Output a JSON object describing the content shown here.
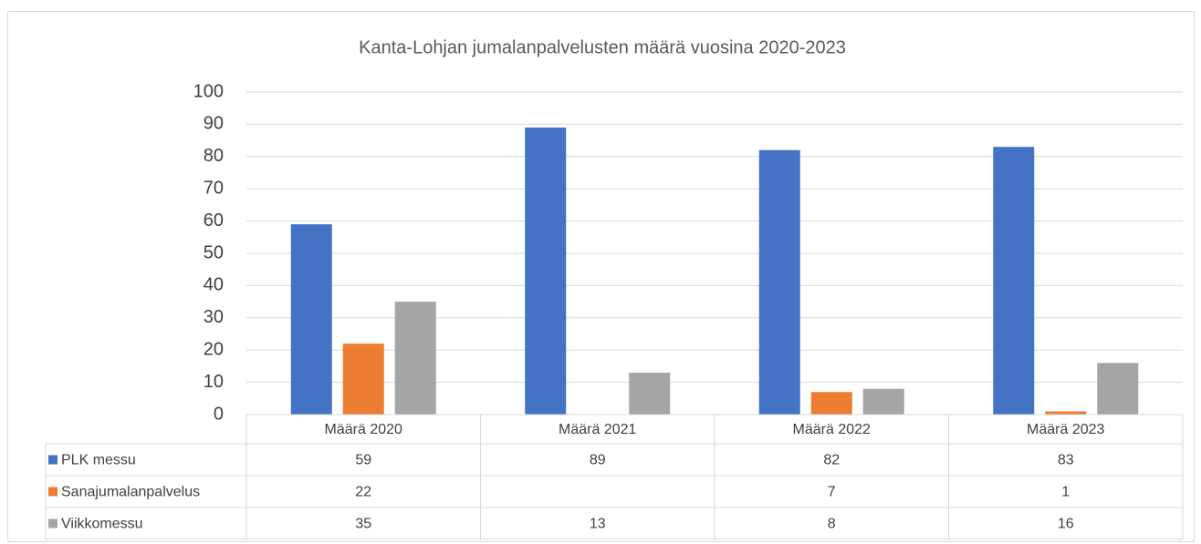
{
  "chart_data": {
    "type": "bar",
    "title": "Kanta-Lohjan jumalanpalvelusten määrä vuosina 2020-2023",
    "categories": [
      "Määrä 2020",
      "Määrä 2021",
      "Määrä 2022",
      "Määrä 2023"
    ],
    "series": [
      {
        "name": "PLK messu",
        "color": "#4472c4",
        "values": [
          59,
          89,
          82,
          83
        ]
      },
      {
        "name": "Sanajumalanpalvelus",
        "color": "#ed7d31",
        "values": [
          22,
          null,
          7,
          1
        ]
      },
      {
        "name": "Viikkomessu",
        "color": "#a5a5a5",
        "values": [
          35,
          13,
          8,
          16
        ]
      }
    ],
    "ylim": [
      0,
      100
    ],
    "yticks": [
      0,
      10,
      20,
      30,
      40,
      50,
      60,
      70,
      80,
      90,
      100
    ],
    "grid": true,
    "data_table": true
  }
}
